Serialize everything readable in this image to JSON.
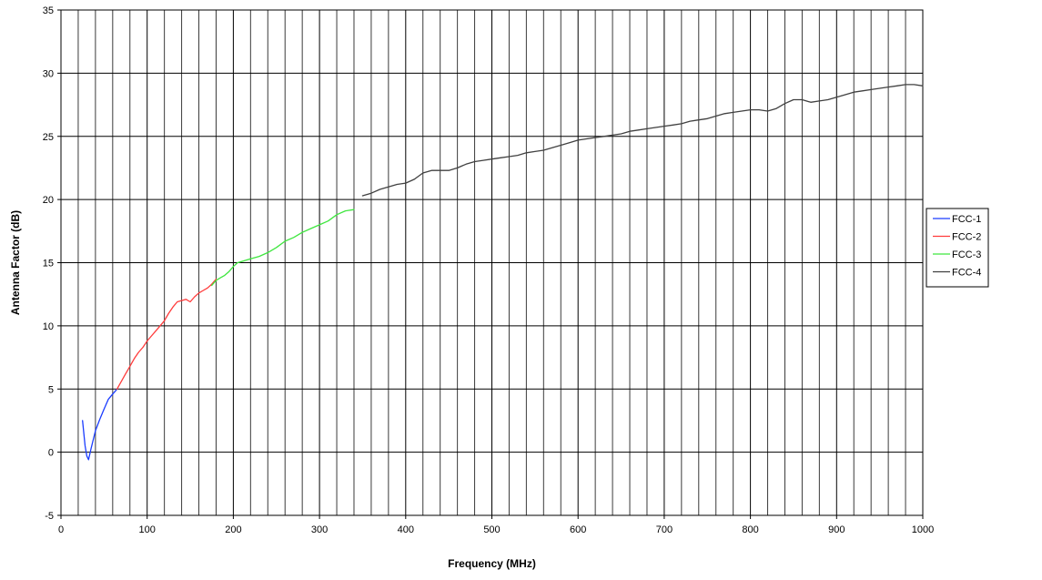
{
  "chart_data": {
    "type": "line",
    "title": "",
    "xlabel": "Frequency (MHz)",
    "ylabel": "Antenna Factor (dB)",
    "xlim": [
      0,
      1000
    ],
    "ylim": [
      -5,
      35
    ],
    "x_major_step": 100,
    "x_minor_step": 20,
    "y_major_step": 5,
    "grid": true,
    "legend_position": "right",
    "x_ticks": [
      "0",
      "100",
      "200",
      "300",
      "400",
      "500",
      "600",
      "700",
      "800",
      "900",
      "1000"
    ],
    "y_ticks": [
      "-5",
      "0",
      "5",
      "10",
      "15",
      "20",
      "25",
      "30",
      "35"
    ],
    "series": [
      {
        "name": "FCC-1",
        "color": "#1a3cff",
        "x": [
          25,
          28,
          30,
          32,
          35,
          40,
          45,
          50,
          55,
          60,
          65
        ],
        "y": [
          2.5,
          0.5,
          -0.3,
          -0.6,
          0.3,
          1.7,
          2.6,
          3.4,
          4.2,
          4.6,
          5.0
        ]
      },
      {
        "name": "FCC-2",
        "color": "#ff3b3b",
        "x": [
          65,
          70,
          75,
          80,
          85,
          90,
          95,
          100,
          105,
          110,
          115,
          120,
          125,
          130,
          135,
          140,
          145,
          150,
          155,
          160,
          165,
          170,
          175,
          180
        ],
        "y": [
          5.0,
          5.6,
          6.2,
          6.8,
          7.4,
          7.9,
          8.3,
          8.8,
          9.2,
          9.6,
          10.0,
          10.4,
          11.0,
          11.5,
          11.9,
          12.0,
          12.1,
          11.9,
          12.3,
          12.6,
          12.8,
          13.0,
          13.3,
          13.7
        ]
      },
      {
        "name": "FCC-3",
        "color": "#3ee63e",
        "x": [
          175,
          180,
          185,
          190,
          195,
          200,
          205,
          210,
          220,
          230,
          240,
          250,
          260,
          270,
          280,
          290,
          300,
          310,
          320,
          330,
          340
        ],
        "y": [
          13.2,
          13.6,
          13.8,
          14.0,
          14.3,
          14.7,
          15.0,
          15.1,
          15.3,
          15.5,
          15.8,
          16.2,
          16.7,
          17.0,
          17.4,
          17.7,
          18.0,
          18.3,
          18.8,
          19.1,
          19.2
        ]
      },
      {
        "name": "FCC-4",
        "color": "#404040",
        "x": [
          350,
          360,
          370,
          380,
          390,
          400,
          410,
          420,
          430,
          440,
          450,
          460,
          470,
          480,
          490,
          500,
          510,
          520,
          530,
          540,
          550,
          560,
          570,
          580,
          590,
          600,
          610,
          620,
          630,
          640,
          650,
          660,
          670,
          680,
          690,
          700,
          710,
          720,
          730,
          740,
          750,
          760,
          770,
          780,
          790,
          800,
          810,
          820,
          830,
          840,
          850,
          860,
          870,
          880,
          890,
          900,
          910,
          920,
          930,
          940,
          950,
          960,
          970,
          980,
          990,
          1000
        ],
        "y": [
          20.3,
          20.5,
          20.8,
          21.0,
          21.2,
          21.3,
          21.6,
          22.1,
          22.3,
          22.3,
          22.3,
          22.5,
          22.8,
          23.0,
          23.1,
          23.2,
          23.3,
          23.4,
          23.5,
          23.7,
          23.8,
          23.9,
          24.1,
          24.3,
          24.5,
          24.7,
          24.8,
          24.9,
          25.0,
          25.1,
          25.2,
          25.4,
          25.5,
          25.6,
          25.7,
          25.8,
          25.9,
          26.0,
          26.2,
          26.3,
          26.4,
          26.6,
          26.8,
          26.9,
          27.0,
          27.1,
          27.1,
          27.0,
          27.2,
          27.6,
          27.9,
          27.9,
          27.7,
          27.8,
          27.9,
          28.1,
          28.3,
          28.5,
          28.6,
          28.7,
          28.8,
          28.9,
          29.0,
          29.1,
          29.1,
          29.0
        ]
      }
    ]
  }
}
